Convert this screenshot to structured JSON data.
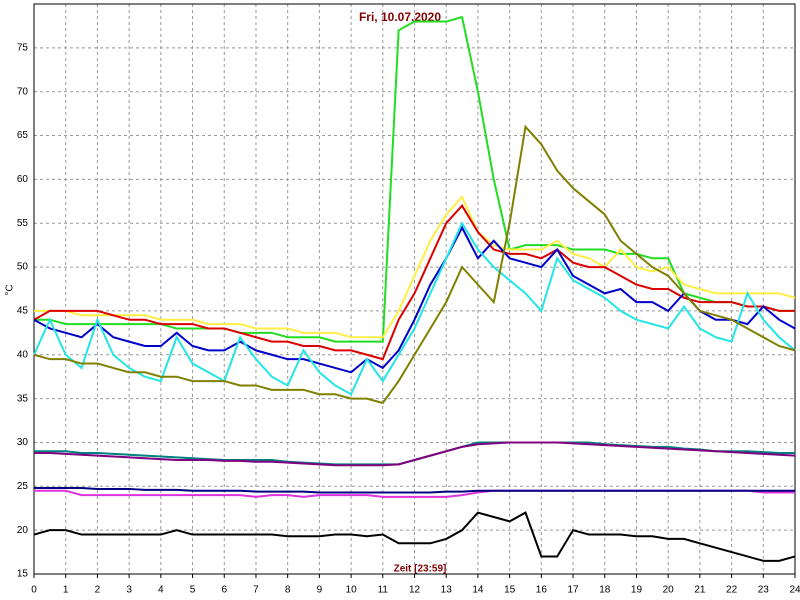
{
  "chart_data": {
    "type": "line",
    "title": "Fri, 10.07.2020",
    "x_label": "Zeit [23:59]",
    "y_label": "°C",
    "x": [
      0,
      0.5,
      1,
      1.5,
      2,
      2.5,
      3,
      3.5,
      4,
      4.5,
      5,
      5.5,
      6,
      6.5,
      7,
      7.5,
      8,
      8.5,
      9,
      9.5,
      10,
      10.5,
      11,
      11.5,
      12,
      12.5,
      13,
      13.5,
      14,
      14.5,
      15,
      15.5,
      16,
      16.5,
      17,
      17.5,
      18,
      18.5,
      19,
      19.5,
      20,
      20.5,
      21,
      21.5,
      22,
      22.5,
      23,
      23.5,
      24
    ],
    "xlim": [
      0,
      24
    ],
    "xticks": [
      0,
      1,
      2,
      3,
      4,
      5,
      6,
      7,
      8,
      9,
      10,
      11,
      12,
      13,
      14,
      15,
      16,
      17,
      18,
      19,
      20,
      21,
      22,
      23,
      24
    ],
    "ylim": [
      15,
      80
    ],
    "yticks": [
      15,
      20,
      25,
      30,
      35,
      40,
      45,
      50,
      55,
      60,
      65,
      70,
      75
    ],
    "grid": true,
    "series": [
      {
        "color": "#22dd22",
        "values": [
          44,
          44,
          43.5,
          43.5,
          43.5,
          43.5,
          43.5,
          43.5,
          43.5,
          43,
          43,
          43,
          43,
          42.5,
          42.5,
          42.5,
          42,
          42,
          42,
          41.5,
          41.5,
          41.5,
          41.5,
          77,
          78,
          78,
          78,
          78.5,
          70,
          60,
          52,
          52.5,
          52.5,
          52.5,
          52,
          52,
          52,
          51.5,
          51.5,
          51,
          51,
          47,
          46.5,
          46,
          46,
          45.5,
          45.5,
          45,
          45
        ]
      },
      {
        "color": "#ffee44",
        "values": [
          45,
          45,
          45,
          44.5,
          44.5,
          44.5,
          44.5,
          44.5,
          44,
          44,
          44,
          43.5,
          43.5,
          43.5,
          43,
          43,
          43,
          42.5,
          42.5,
          42.5,
          42,
          42,
          42,
          45,
          49,
          53,
          56,
          58,
          54,
          52.5,
          52,
          52,
          52,
          53,
          51.5,
          51,
          50,
          52,
          50,
          49.5,
          50,
          48,
          47.5,
          47,
          47,
          47,
          47,
          47,
          46.5
        ]
      },
      {
        "color": "#dd0000",
        "values": [
          44,
          45,
          45,
          45,
          45,
          44.5,
          44,
          44,
          43.5,
          43.5,
          43.5,
          43,
          43,
          42.5,
          42,
          41.5,
          41.5,
          41,
          41,
          40.5,
          40.5,
          40,
          39.5,
          44,
          47,
          51,
          55,
          57,
          54,
          52,
          51.5,
          51.5,
          51,
          52,
          50.5,
          50,
          50,
          49,
          48,
          47.5,
          47.5,
          46.5,
          46,
          46,
          46,
          45.5,
          45.5,
          45,
          45
        ]
      },
      {
        "color": "#0000cc",
        "values": [
          44,
          43,
          42.5,
          42,
          43.5,
          42,
          41.5,
          41,
          41,
          42.5,
          41,
          40.5,
          40.5,
          41.5,
          40.5,
          40,
          39.5,
          39.5,
          39,
          38.5,
          38,
          39.5,
          38.5,
          40.5,
          44,
          48,
          51,
          54.5,
          51,
          53,
          51,
          50.5,
          50,
          52,
          49,
          48,
          47,
          47.5,
          46,
          46,
          45,
          47,
          45,
          44,
          44,
          43.5,
          45.5,
          44,
          43
        ]
      },
      {
        "color": "#22e5e5",
        "values": [
          40,
          44,
          40,
          38.5,
          44,
          40,
          38.5,
          37.5,
          37,
          42,
          39,
          38,
          37,
          42,
          39.5,
          37.5,
          36.5,
          40.5,
          38,
          36.5,
          35.5,
          39.5,
          37,
          40,
          43,
          47,
          51,
          55,
          52,
          50,
          48.5,
          47,
          45,
          51,
          48.5,
          47.5,
          46.5,
          45,
          44,
          43.5,
          43,
          45.5,
          43,
          42,
          41.5,
          47,
          44,
          42,
          40.5
        ]
      },
      {
        "color": "#808000",
        "values": [
          40,
          39.5,
          39.5,
          39,
          39,
          38.5,
          38,
          38,
          37.5,
          37.5,
          37,
          37,
          37,
          36.5,
          36.5,
          36,
          36,
          36,
          35.5,
          35.5,
          35,
          35,
          34.5,
          37,
          40,
          43,
          46,
          50,
          48,
          46,
          55,
          66,
          64,
          61,
          59,
          57.5,
          56,
          53,
          51.5,
          50,
          49,
          47,
          45,
          44.5,
          44,
          43,
          42,
          41,
          40.5
        ]
      },
      {
        "color": "#008080",
        "values": [
          29,
          29,
          29,
          28.8,
          28.8,
          28.7,
          28.6,
          28.5,
          28.4,
          28.3,
          28.2,
          28.1,
          28,
          28,
          28,
          28,
          27.8,
          27.7,
          27.6,
          27.5,
          27.5,
          27.5,
          27.5,
          27.5,
          28,
          28.5,
          29,
          29.5,
          30,
          30,
          30,
          30,
          30,
          30,
          30,
          30,
          29.8,
          29.7,
          29.6,
          29.5,
          29.5,
          29.3,
          29.2,
          29,
          29,
          29,
          28.9,
          28.8,
          28.8
        ]
      },
      {
        "color": "#800080",
        "values": [
          28.8,
          28.8,
          28.7,
          28.6,
          28.5,
          28.4,
          28.3,
          28.2,
          28.1,
          28,
          28,
          28,
          27.9,
          27.9,
          27.8,
          27.8,
          27.7,
          27.6,
          27.5,
          27.4,
          27.4,
          27.4,
          27.4,
          27.5,
          28,
          28.5,
          29,
          29.5,
          29.8,
          29.9,
          30,
          30,
          30,
          30,
          29.9,
          29.8,
          29.7,
          29.6,
          29.5,
          29.4,
          29.3,
          29.2,
          29.1,
          29,
          28.9,
          28.8,
          28.7,
          28.6,
          28.5
        ]
      },
      {
        "color": "#dd33dd",
        "values": [
          24.5,
          24.5,
          24.5,
          24,
          24,
          24,
          24,
          24,
          24,
          24,
          24,
          24,
          24,
          24,
          23.8,
          24,
          24,
          23.8,
          24,
          24,
          24,
          24,
          23.8,
          23.8,
          23.8,
          23.8,
          23.8,
          24,
          24.3,
          24.5,
          24.5,
          24.5,
          24.5,
          24.5,
          24.5,
          24.5,
          24.5,
          24.5,
          24.5,
          24.5,
          24.5,
          24.5,
          24.5,
          24.5,
          24.5,
          24.5,
          24.3,
          24.3,
          24.3
        ]
      },
      {
        "color": "#000080",
        "values": [
          24.8,
          24.8,
          24.8,
          24.8,
          24.7,
          24.7,
          24.7,
          24.6,
          24.6,
          24.6,
          24.5,
          24.5,
          24.5,
          24.5,
          24.4,
          24.4,
          24.4,
          24.4,
          24.3,
          24.3,
          24.3,
          24.3,
          24.3,
          24.3,
          24.3,
          24.3,
          24.4,
          24.4,
          24.5,
          24.5,
          24.5,
          24.5,
          24.5,
          24.5,
          24.5,
          24.5,
          24.5,
          24.5,
          24.5,
          24.5,
          24.5,
          24.5,
          24.5,
          24.5,
          24.5,
          24.5,
          24.5,
          24.5,
          24.5
        ]
      },
      {
        "color": "#000000",
        "values": [
          19.5,
          20,
          20,
          19.5,
          19.5,
          19.5,
          19.5,
          19.5,
          19.5,
          20,
          19.5,
          19.5,
          19.5,
          19.5,
          19.5,
          19.5,
          19.3,
          19.3,
          19.3,
          19.5,
          19.5,
          19.3,
          19.5,
          18.5,
          18.5,
          18.5,
          19,
          20,
          22,
          21.5,
          21,
          22,
          17,
          17,
          20,
          19.5,
          19.5,
          19.5,
          19.3,
          19.3,
          19,
          19,
          18.5,
          18,
          17.5,
          17,
          16.5,
          16.5,
          17
        ]
      }
    ]
  }
}
